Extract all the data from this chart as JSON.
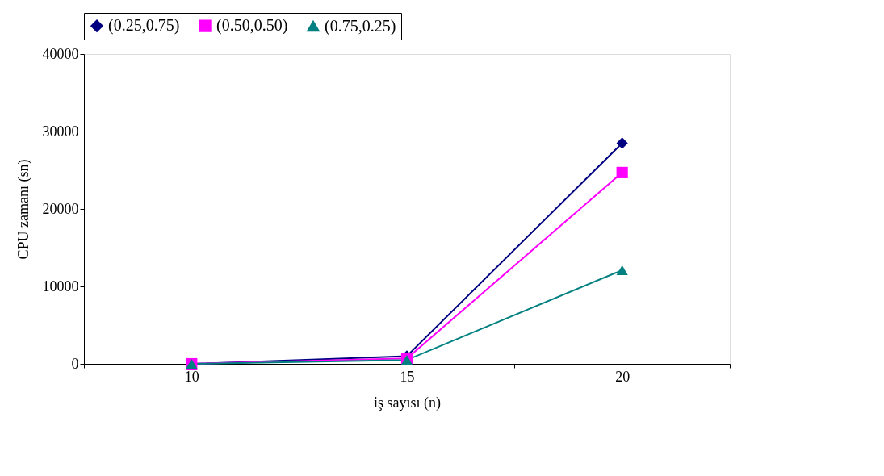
{
  "chart_data": {
    "type": "line",
    "xlabel": "iş sayısı (n)",
    "ylabel": "CPU zamanı (sn)",
    "categories": [
      "10",
      "15",
      "20"
    ],
    "series": [
      {
        "name": "(0.25,0.75)",
        "color": "#000080",
        "marker": "diamond",
        "values": [
          0,
          1000,
          28500
        ]
      },
      {
        "name": "(0.50,0.50)",
        "color": "#ff00ff",
        "marker": "square",
        "values": [
          0,
          700,
          24700
        ]
      },
      {
        "name": "(0.75,0.25)",
        "color": "#008080",
        "marker": "triangle",
        "values": [
          0,
          500,
          12100
        ]
      }
    ],
    "ylim": [
      0,
      40000
    ],
    "yticks": [
      0,
      10000,
      20000,
      30000,
      40000
    ],
    "grid": false,
    "legend": "top"
  }
}
